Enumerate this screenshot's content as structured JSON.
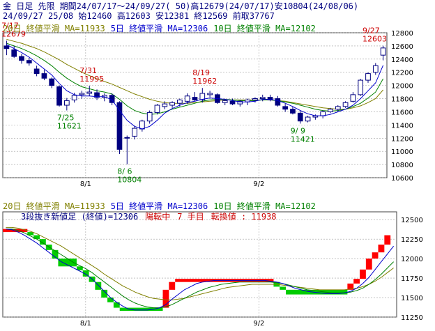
{
  "header": {
    "line1": "金 日足 先限 期間24/07/17～24/09/27( 50)高12679(24/07/17)安10804(24/08/06)",
    "line2": "24/09/27 25/08 始12460 高12603 安12381 終12569 前取37767"
  },
  "upper_legend": [
    {
      "text": "20日 終値平滑 MA=11933",
      "color": "#808000"
    },
    {
      "text": "5日 終値平滑 MA=12306",
      "color": "#0000cc"
    },
    {
      "text": "10日 終値平滑 MA=12102",
      "color": "#008000"
    }
  ],
  "lower_legend": [
    {
      "text": "20日 終値平滑 MA=11933",
      "color": "#808000"
    },
    {
      "text": "5日 終値平滑 MA=12306",
      "color": "#0000cc"
    },
    {
      "text": "10日 終値平滑 MA=12102",
      "color": "#008000"
    }
  ],
  "lower_info": [
    {
      "text": "3段抜き新値足 (終値)=12306",
      "color": "#000080"
    },
    {
      "text": "陽転中",
      "color": "#cc0000"
    },
    {
      "text": "7 手目",
      "color": "#cc0000"
    },
    {
      "text": "転換値 : 11938",
      "color": "#cc0000"
    }
  ],
  "colors": {
    "up": "#ffffff",
    "down": "#000080",
    "ma5": "#0000cc",
    "ma10": "#008000",
    "ma20": "#808000",
    "grid": "#a0a0a0",
    "renko_up": "#ff0000",
    "renko_down": "#00cc00",
    "price_high_label": "#cc0000",
    "price_low_label": "#008000"
  },
  "chart_data": [
    {
      "type": "candlestick",
      "ylim": [
        10600,
        12800
      ],
      "yticks": [
        10600,
        10800,
        11000,
        11200,
        11400,
        11600,
        11800,
        12000,
        12200,
        12400,
        12600,
        12800
      ],
      "xtick_labels": [
        {
          "index": 10.5,
          "label": "8/1"
        },
        {
          "index": 33.5,
          "label": "9/2"
        }
      ],
      "ohlc": [
        [
          12600,
          12679,
          12460,
          12560
        ],
        [
          12540,
          12600,
          12420,
          12440
        ],
        [
          12440,
          12480,
          12330,
          12380
        ],
        [
          12380,
          12420,
          12300,
          12340
        ],
        [
          12250,
          12300,
          12140,
          12180
        ],
        [
          12180,
          12240,
          12080,
          12110
        ],
        [
          12100,
          12120,
          11960,
          12000
        ],
        [
          11980,
          12000,
          11680,
          11700
        ],
        [
          11700,
          11810,
          11621,
          11770
        ],
        [
          11780,
          11890,
          11740,
          11850
        ],
        [
          11860,
          11920,
          11800,
          11880
        ],
        [
          11880,
          11995,
          11840,
          11900
        ],
        [
          11890,
          11940,
          11780,
          11820
        ],
        [
          11820,
          11880,
          11760,
          11850
        ],
        [
          11850,
          11880,
          11700,
          11740
        ],
        [
          11740,
          11760,
          10960,
          11030
        ],
        [
          11200,
          11240,
          10804,
          11210
        ],
        [
          11230,
          11380,
          11180,
          11350
        ],
        [
          11340,
          11480,
          11300,
          11460
        ],
        [
          11460,
          11620,
          11420,
          11590
        ],
        [
          11590,
          11720,
          11560,
          11700
        ],
        [
          11680,
          11760,
          11640,
          11720
        ],
        [
          11700,
          11760,
          11660,
          11740
        ],
        [
          11730,
          11800,
          11680,
          11780
        ],
        [
          11760,
          11880,
          11720,
          11840
        ],
        [
          11820,
          11900,
          11760,
          11780
        ],
        [
          11780,
          11962,
          11740,
          11880
        ],
        [
          11860,
          11920,
          11820,
          11880
        ],
        [
          11860,
          11880,
          11720,
          11740
        ],
        [
          11740,
          11800,
          11700,
          11770
        ],
        [
          11760,
          11800,
          11700,
          11720
        ],
        [
          11720,
          11780,
          11680,
          11760
        ],
        [
          11750,
          11800,
          11700,
          11780
        ],
        [
          11780,
          11820,
          11740,
          11800
        ],
        [
          11800,
          11860,
          11760,
          11820
        ],
        [
          11820,
          11860,
          11760,
          11780
        ],
        [
          11800,
          11840,
          11680,
          11700
        ],
        [
          11680,
          11720,
          11600,
          11640
        ],
        [
          11640,
          11680,
          11560,
          11580
        ],
        [
          11580,
          11620,
          11421,
          11460
        ],
        [
          11460,
          11540,
          11440,
          11520
        ],
        [
          11520,
          11560,
          11480,
          11540
        ],
        [
          11540,
          11620,
          11500,
          11600
        ],
        [
          11600,
          11660,
          11580,
          11640
        ],
        [
          11640,
          11700,
          11600,
          11680
        ],
        [
          11680,
          11760,
          11660,
          11740
        ],
        [
          11760,
          11900,
          11740,
          11860
        ],
        [
          11860,
          12100,
          11840,
          12080
        ],
        [
          12080,
          12200,
          12040,
          12180
        ],
        [
          12200,
          12340,
          12160,
          12300
        ],
        [
          12460,
          12603,
          12381,
          12569
        ]
      ],
      "ma5": [
        12620,
        12560,
        12500,
        12430,
        12340,
        12250,
        12160,
        12030,
        11920,
        11860,
        11840,
        11840,
        11830,
        11830,
        11780,
        11620,
        11470,
        11380,
        11340,
        11380,
        11470,
        11580,
        11650,
        11700,
        11740,
        11760,
        11790,
        11810,
        11800,
        11790,
        11770,
        11750,
        11750,
        11760,
        11790,
        11790,
        11770,
        11730,
        11680,
        11620,
        11570,
        11540,
        11540,
        11560,
        11600,
        11640,
        11700,
        11800,
        11920,
        12040,
        12306
      ],
      "ma10": [
        12640,
        12600,
        12560,
        12510,
        12450,
        12380,
        12300,
        12200,
        12110,
        12040,
        11980,
        11950,
        11920,
        11900,
        11870,
        11790,
        11690,
        11620,
        11580,
        11560,
        11570,
        11600,
        11640,
        11670,
        11700,
        11730,
        11760,
        11780,
        11790,
        11790,
        11780,
        11770,
        11770,
        11770,
        11780,
        11780,
        11770,
        11750,
        11730,
        11700,
        11670,
        11640,
        11620,
        11610,
        11620,
        11640,
        11680,
        11730,
        11810,
        11900,
        12102
      ],
      "ma20": [
        12700,
        12670,
        12640,
        12600,
        12560,
        12510,
        12450,
        12390,
        12320,
        12260,
        12200,
        12150,
        12100,
        12060,
        12020,
        11970,
        11920,
        11870,
        11830,
        11790,
        11760,
        11740,
        11730,
        11730,
        11730,
        11740,
        11750,
        11760,
        11770,
        11780,
        11780,
        11780,
        11780,
        11780,
        11780,
        11780,
        11770,
        11760,
        11740,
        11720,
        11700,
        11680,
        11660,
        11650,
        11640,
        11640,
        11660,
        11690,
        11740,
        11800,
        11933
      ],
      "annotations": [
        {
          "index": 0,
          "price": 12679,
          "date": "7/17",
          "value": "12679",
          "kind": "high"
        },
        {
          "index": 11,
          "price": 11995,
          "date": "7/31",
          "value": "11995",
          "kind": "high"
        },
        {
          "index": 26,
          "price": 11962,
          "date": "8/19",
          "value": "11962",
          "kind": "high"
        },
        {
          "index": 50,
          "price": 12603,
          "date": "9/27",
          "value": "12603",
          "kind": "high"
        },
        {
          "index": 8,
          "price": 11621,
          "date": "7/25",
          "value": "11621",
          "kind": "low"
        },
        {
          "index": 16,
          "price": 10804,
          "date": "8/ 6",
          "value": "10804",
          "kind": "low"
        },
        {
          "index": 39,
          "price": 11421,
          "date": "9/ 9",
          "value": "11421",
          "kind": "low"
        }
      ]
    },
    {
      "type": "renko",
      "ylim": [
        11250,
        12600
      ],
      "yticks": [
        11250,
        11500,
        11750,
        12000,
        12250,
        12500
      ],
      "xtick_labels": [
        {
          "index": 10.5,
          "label": "8/1"
        },
        {
          "index": 33.5,
          "label": "9/2"
        }
      ],
      "bricks": [
        {
          "from": 0,
          "to": 4,
          "low": 12340,
          "high": 12380,
          "dir": "up"
        },
        {
          "from": 4,
          "to": 5,
          "low": 12300,
          "high": 12340,
          "dir": "down"
        },
        {
          "from": 5,
          "to": 6,
          "low": 12250,
          "high": 12300,
          "dir": "down"
        },
        {
          "from": 6,
          "to": 7,
          "low": 12180,
          "high": 12250,
          "dir": "down"
        },
        {
          "from": 7,
          "to": 8,
          "low": 12110,
          "high": 12180,
          "dir": "down"
        },
        {
          "from": 8,
          "to": 9,
          "low": 12000,
          "high": 12110,
          "dir": "down"
        },
        {
          "from": 9,
          "to": 12,
          "low": 11900,
          "high": 12000,
          "dir": "down"
        },
        {
          "from": 12,
          "to": 13,
          "low": 11850,
          "high": 11900,
          "dir": "down"
        },
        {
          "from": 13,
          "to": 14,
          "low": 11770,
          "high": 11850,
          "dir": "down"
        },
        {
          "from": 14,
          "to": 15,
          "low": 11700,
          "high": 11770,
          "dir": "down"
        },
        {
          "from": 15,
          "to": 16,
          "low": 11600,
          "high": 11700,
          "dir": "down"
        },
        {
          "from": 16,
          "to": 17,
          "low": 11500,
          "high": 11600,
          "dir": "down"
        },
        {
          "from": 17,
          "to": 18,
          "low": 11440,
          "high": 11500,
          "dir": "down"
        },
        {
          "from": 18,
          "to": 19,
          "low": 11370,
          "high": 11440,
          "dir": "down"
        },
        {
          "from": 19,
          "to": 26,
          "low": 11330,
          "high": 11370,
          "dir": "down"
        },
        {
          "from": 26,
          "to": 27,
          "low": 11370,
          "high": 11600,
          "dir": "up"
        },
        {
          "from": 27,
          "to": 28,
          "low": 11600,
          "high": 11700,
          "dir": "up"
        },
        {
          "from": 28,
          "to": 44,
          "low": 11700,
          "high": 11740,
          "dir": "up"
        },
        {
          "from": 44,
          "to": 45,
          "low": 11640,
          "high": 11700,
          "dir": "down"
        },
        {
          "from": 45,
          "to": 46,
          "low": 11600,
          "high": 11640,
          "dir": "down"
        },
        {
          "from": 46,
          "to": 56,
          "low": 11540,
          "high": 11600,
          "dir": "down"
        },
        {
          "from": 56,
          "to": 57,
          "low": 11600,
          "high": 11680,
          "dir": "up"
        },
        {
          "from": 57,
          "to": 58,
          "low": 11680,
          "high": 11740,
          "dir": "up"
        },
        {
          "from": 58,
          "to": 59,
          "low": 11740,
          "high": 11860,
          "dir": "up"
        },
        {
          "from": 59,
          "to": 60,
          "low": 11860,
          "high": 12000,
          "dir": "up"
        },
        {
          "from": 60,
          "to": 61,
          "low": 12000,
          "high": 12080,
          "dir": "up"
        },
        {
          "from": 61,
          "to": 62,
          "low": 12080,
          "high": 12180,
          "dir": "up"
        },
        {
          "from": 62,
          "to": 63,
          "low": 12180,
          "high": 12300,
          "dir": "up"
        }
      ],
      "ma5": [
        12380,
        12370,
        12340,
        12300,
        12250,
        12200,
        12140,
        12080,
        12020,
        11960,
        11920,
        11880,
        11840,
        11800,
        11740,
        11660,
        11580,
        11500,
        11440,
        11390,
        11350,
        11340,
        11340,
        11340,
        11350,
        11370,
        11410,
        11480,
        11540,
        11600,
        11640,
        11680,
        11700,
        11710,
        11720,
        11720,
        11720,
        11720,
        11720,
        11720,
        11720,
        11720,
        11720,
        11710,
        11700,
        11680,
        11650,
        11620,
        11600,
        11580,
        11570,
        11560,
        11550,
        11550,
        11550,
        11560,
        11580,
        11620,
        11680,
        11760,
        11860,
        11960,
        12060,
        12160
      ],
      "ma10": [
        12380,
        12380,
        12360,
        12330,
        12290,
        12250,
        12200,
        12150,
        12100,
        12050,
        12000,
        11950,
        11910,
        11870,
        11820,
        11760,
        11700,
        11640,
        11580,
        11520,
        11470,
        11430,
        11400,
        11380,
        11370,
        11370,
        11380,
        11410,
        11450,
        11490,
        11530,
        11570,
        11600,
        11630,
        11650,
        11670,
        11680,
        11690,
        11700,
        11700,
        11700,
        11700,
        11700,
        11700,
        11690,
        11680,
        11660,
        11640,
        11620,
        11600,
        11590,
        11580,
        11570,
        11560,
        11560,
        11560,
        11570,
        11590,
        11620,
        11670,
        11730,
        11800,
        11880,
        11960
      ],
      "ma20": [
        12400,
        12400,
        12390,
        12370,
        12350,
        12320,
        12280,
        12240,
        12200,
        12160,
        12110,
        12060,
        12010,
        11960,
        11910,
        11860,
        11800,
        11750,
        11700,
        11650,
        11610,
        11570,
        11540,
        11510,
        11490,
        11480,
        11470,
        11470,
        11480,
        11490,
        11510,
        11530,
        11550,
        11570,
        11590,
        11610,
        11630,
        11640,
        11650,
        11660,
        11670,
        11670,
        11670,
        11670,
        11670,
        11660,
        11650,
        11640,
        11630,
        11620,
        11610,
        11600,
        11600,
        11600,
        11600,
        11600,
        11610,
        11620,
        11640,
        11670,
        11710,
        11760,
        11820,
        11880
      ]
    }
  ]
}
